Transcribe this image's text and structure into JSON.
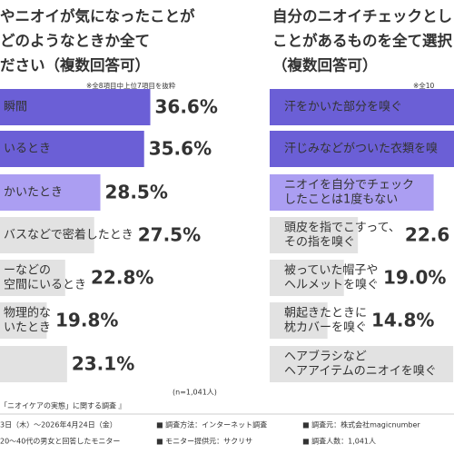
{
  "chart_data": [
    {
      "type": "hbar",
      "title": [
        "やニオイが気になったことが",
        "どのようなときか全て",
        "ださい（複数回答可）"
      ],
      "note": "※全8項目中上位7項目を抜粋",
      "sample": "(n=1,041人)",
      "categories": [
        [
          "瞬間"
        ],
        [
          "いるとき"
        ],
        [
          "かいたとき"
        ],
        [
          "バスなどで密着したとき"
        ],
        [
          "ーなどの",
          "空間にいるとき"
        ],
        [
          "物理的な",
          "いたとき"
        ],
        null
      ],
      "values": [
        36.6,
        35.6,
        28.5,
        27.5,
        22.8,
        19.8,
        23.1
      ],
      "value_labels": [
        "36.6%",
        "35.6%",
        "28.5%",
        "27.5%",
        "22.8%",
        "19.8%",
        "23.1%"
      ],
      "colors": [
        "#6b5fd6",
        "#6b5fd6",
        "#ab9ef2",
        "#e2e2e2",
        "#e2e2e2",
        "#e2e2e2",
        "#e2e2e2"
      ],
      "label_colors": [
        "#5a4cc8",
        "#5a4cc8",
        "#a596ee",
        "#333333",
        "#333333",
        "#333333",
        "#333333"
      ]
    },
    {
      "type": "hbar",
      "title": [
        "自分のニオイチェックとし",
        "ことがあるものを全て選択",
        "（複数回答可）"
      ],
      "note": "※全10",
      "categories": [
        [
          "汗をかいた部分を嗅ぐ"
        ],
        [
          "汗じみなどがついた衣類を嗅"
        ],
        [
          "ニオイを自分でチェック",
          "したことは1度もない"
        ],
        [
          "頭皮を指でこすって、",
          "その指を嗅ぐ"
        ],
        [
          "被っていた帽子や",
          "ヘルメットを嗅ぐ"
        ],
        [
          "朝起きたときに",
          "枕カバーを嗅ぐ"
        ],
        [
          "ヘアブラシなど",
          "ヘアアイテムのニオイを嗅ぐ"
        ]
      ],
      "values": [
        50,
        48,
        42,
        22.6,
        19.0,
        14.8,
        47
      ],
      "value_labels": [
        null,
        null,
        null,
        "22.6",
        "19.0%",
        "14.8%",
        null
      ],
      "colors": [
        "#6b5fd6",
        "#6b5fd6",
        "#ab9ef2",
        "#e2e2e2",
        "#e2e2e2",
        "#e2e2e2",
        "#e2e2e2"
      ],
      "label_colors": [
        "#5a4cc8",
        "#5a4cc8",
        "#a596ee",
        "#333333",
        "#333333",
        "#333333",
        "#333333"
      ]
    }
  ],
  "footer": {
    "survey": "「ニオイケアの実態」に関する調査 』",
    "period": "3日（木）～2026年4月24日（金）",
    "method": "■ 調査方法：インターネット調査",
    "source": "■ 調査元：株式会社magicnumber",
    "target": "20～40代の男女と回答したモニター",
    "provider": "■ モニター提供元：サクリサ",
    "count": "■ 調査人数：1,041人"
  }
}
